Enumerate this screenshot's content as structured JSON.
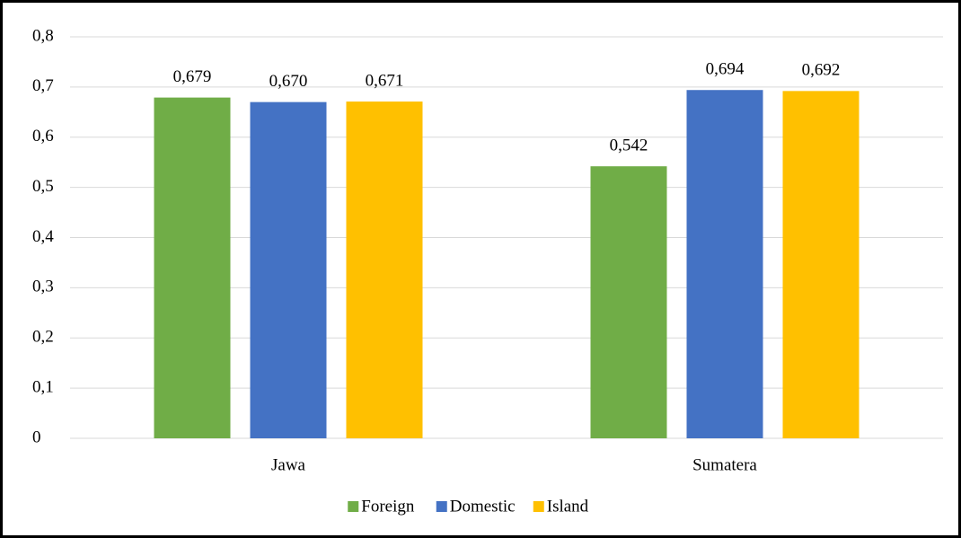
{
  "chart_data": {
    "type": "bar",
    "categories": [
      "Jawa",
      "Sumatera"
    ],
    "series": [
      {
        "name": "Foreign",
        "color": "#70ad47",
        "values": [
          0.679,
          0.542
        ],
        "value_labels": [
          "0,679",
          "0,542"
        ]
      },
      {
        "name": "Domestic",
        "color": "#4472c4",
        "values": [
          0.67,
          0.694
        ],
        "value_labels": [
          "0,670",
          "0,694"
        ]
      },
      {
        "name": "Island",
        "color": "#ffc000",
        "values": [
          0.671,
          0.692
        ],
        "value_labels": [
          "0,671",
          "0,692"
        ]
      }
    ],
    "ylim": [
      0,
      0.8
    ],
    "yticks": [
      0,
      {
        "value": 0.1,
        "label": "0,1"
      },
      {
        "value": 0.2,
        "label": "0,2"
      },
      {
        "value": 0.3,
        "label": "0,3"
      },
      {
        "value": 0.4,
        "label": "0,4"
      },
      {
        "value": 0.5,
        "label": "0,5"
      },
      {
        "value": 0.6,
        "label": "0,6"
      },
      {
        "value": 0.7,
        "label": "0,7"
      },
      {
        "value": 0.8,
        "label": "0,8"
      }
    ],
    "grid": true,
    "legend": "bottom"
  }
}
